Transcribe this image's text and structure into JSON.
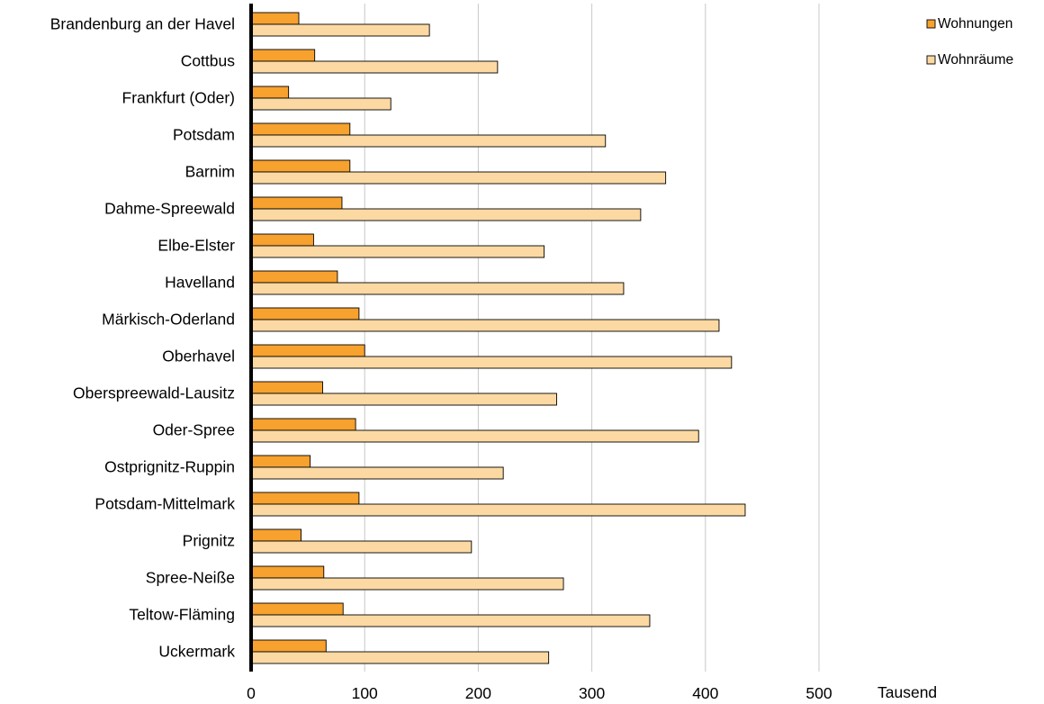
{
  "chart_data": {
    "type": "bar",
    "orientation": "horizontal",
    "categories": [
      "Brandenburg an der Havel",
      "Cottbus",
      "Frankfurt (Oder)",
      "Potsdam",
      "Barnim",
      "Dahme-Spreewald",
      "Elbe-Elster",
      "Havelland",
      "Märkisch-Oderland",
      "Oberhavel",
      "Oberspreewald-Lausitz",
      "Oder-Spree",
      "Ostprignitz-Ruppin",
      "Potsdam-Mittelmark",
      "Prignitz",
      "Spree-Neiße",
      "Teltow-Fläming",
      "Uckermark"
    ],
    "series": [
      {
        "name": "Wohnungen",
        "color": "#f7a12e",
        "values": [
          42,
          56,
          33,
          87,
          87,
          80,
          55,
          76,
          95,
          100,
          63,
          92,
          52,
          95,
          44,
          64,
          81,
          66
        ]
      },
      {
        "name": "Wohnräume",
        "color": "#fcd9a3",
        "values": [
          157,
          217,
          123,
          312,
          365,
          343,
          258,
          328,
          412,
          423,
          269,
          394,
          222,
          435,
          194,
          275,
          351,
          262
        ]
      }
    ],
    "xlim": [
      0,
      500
    ],
    "xticks": [
      "0",
      "100",
      "200",
      "300",
      "400",
      "500"
    ],
    "xticks_values": [
      0,
      100,
      200,
      300,
      400,
      500
    ],
    "unit_label": "Tausend",
    "grid": "vertical",
    "legend_position": "top-right"
  }
}
